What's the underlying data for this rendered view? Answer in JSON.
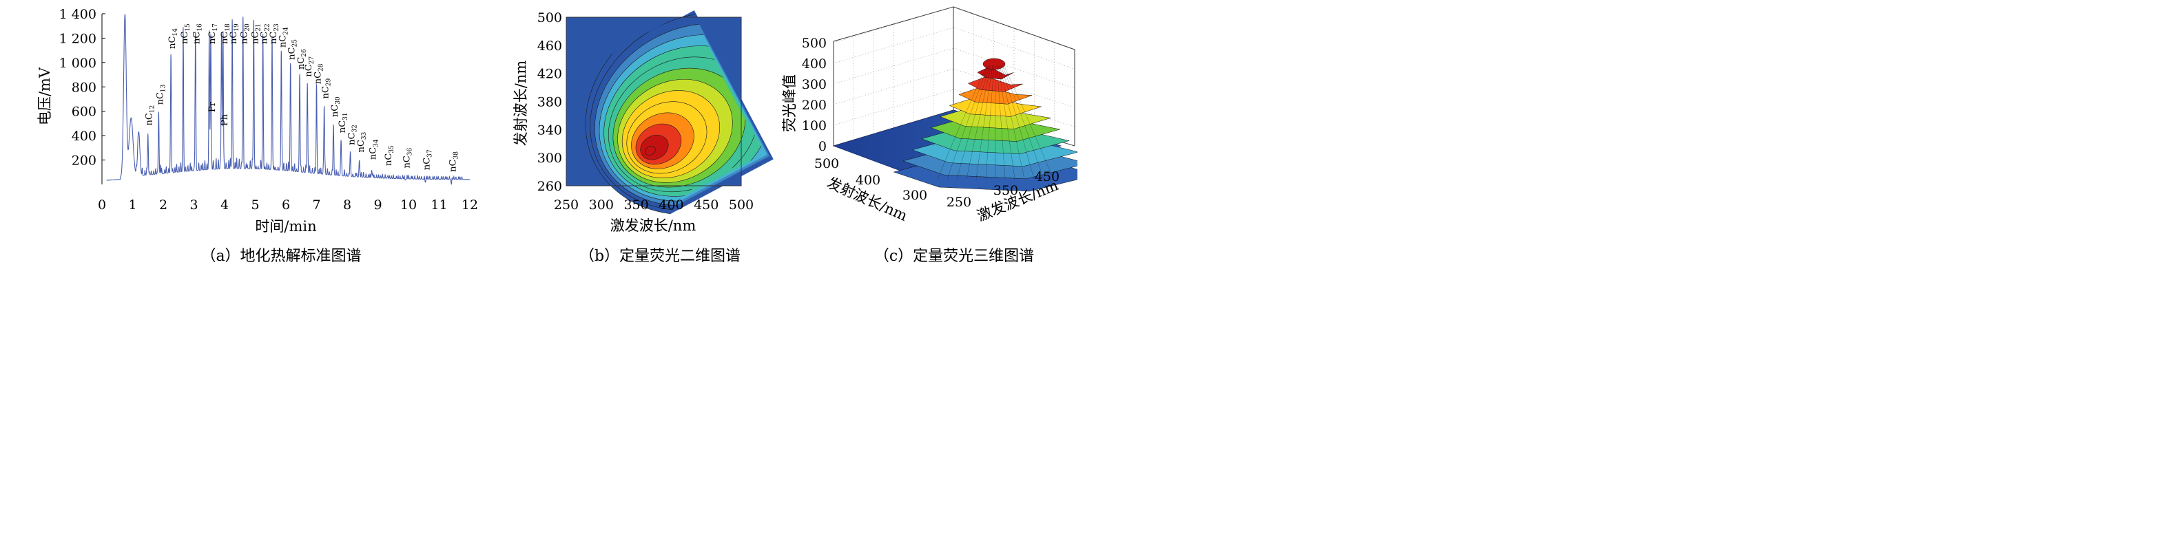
{
  "chart_data": [
    {
      "type": "line",
      "caption": "（a）地化热解标准图谱",
      "xlabel": "时间/min",
      "ylabel": "电压/mV",
      "xlim": [
        0,
        12
      ],
      "ylim": [
        0,
        1400
      ],
      "x_ticks": [
        "0",
        "1",
        "2",
        "3",
        "4",
        "5",
        "6",
        "7",
        "8",
        "9",
        "10",
        "11",
        "12"
      ],
      "y_ticks": [
        "200",
        "400",
        "600",
        "800",
        "1 000",
        "1 200",
        "1 400"
      ],
      "baseline": 40,
      "solvent_peak": {
        "time": 0.75,
        "value": 1330
      },
      "peaks": [
        {
          "label": "nC12",
          "time": 1.5,
          "value": 460
        },
        {
          "label": "nC13",
          "time": 1.85,
          "value": 630
        },
        {
          "label": "nC14",
          "time": 2.25,
          "value": 1090
        },
        {
          "label": "nC15",
          "time": 2.65,
          "value": 1230
        },
        {
          "label": "nC16",
          "time": 3.05,
          "value": 1240
        },
        {
          "label": "Pr",
          "time": 3.5,
          "value": 1250
        },
        {
          "label": "nC17",
          "time": 3.55,
          "value": 1230
        },
        {
          "label": "Ph",
          "time": 3.9,
          "value": 1240
        },
        {
          "label": "nC18",
          "time": 3.95,
          "value": 1250
        },
        {
          "label": "nC19",
          "time": 4.25,
          "value": 1300
        },
        {
          "label": "nC20",
          "time": 4.6,
          "value": 1310
        },
        {
          "label": "nC21",
          "time": 4.95,
          "value": 1300
        },
        {
          "label": "nC22",
          "time": 5.25,
          "value": 1220
        },
        {
          "label": "nC23",
          "time": 5.55,
          "value": 1200
        },
        {
          "label": "nC24",
          "time": 5.85,
          "value": 1100
        },
        {
          "label": "nC25",
          "time": 6.15,
          "value": 1000
        },
        {
          "label": "nC26",
          "time": 6.45,
          "value": 920
        },
        {
          "label": "nC27",
          "time": 6.7,
          "value": 860
        },
        {
          "label": "nC28",
          "time": 7.0,
          "value": 800
        },
        {
          "label": "nC29",
          "time": 7.25,
          "value": 680
        },
        {
          "label": "nC30",
          "time": 7.55,
          "value": 530
        },
        {
          "label": "nC31",
          "time": 7.8,
          "value": 400
        },
        {
          "label": "nC32",
          "time": 8.1,
          "value": 300
        },
        {
          "label": "nC33",
          "time": 8.4,
          "value": 240
        },
        {
          "label": "nC34",
          "time": 8.8,
          "value": 180
        },
        {
          "label": "nC35",
          "time": 9.3,
          "value": 130
        },
        {
          "label": "nC36",
          "time": 9.9,
          "value": 110
        },
        {
          "label": "nC37",
          "time": 10.55,
          "value": 95
        },
        {
          "label": "nC38",
          "time": 11.4,
          "value": 80
        }
      ],
      "series_color": "#4a5fb0"
    },
    {
      "type": "heatmap",
      "subtype": "contour",
      "caption": "（b）定量荧光二维图谱",
      "xlabel": "激发波长/nm",
      "ylabel": "发射波长/nm",
      "xlim": [
        250,
        500
      ],
      "ylim": [
        260,
        500
      ],
      "x_ticks": [
        "250",
        "300",
        "350",
        "400",
        "450",
        "500"
      ],
      "y_ticks": [
        "260",
        "300",
        "340",
        "380",
        "420",
        "460",
        "500"
      ],
      "peak": {
        "excitation": 370,
        "emission": 310
      },
      "levels": 14,
      "colormap": [
        "#2b56a8",
        "#3f86c4",
        "#46b3d4",
        "#3fc39a",
        "#6fcb3a",
        "#c8df2a",
        "#ffd21e",
        "#ff8a14",
        "#e8361e",
        "#c41212"
      ]
    },
    {
      "type": "surface",
      "caption": "（c）定量荧光三维图谱",
      "xlabel": "激发波长/nm",
      "ylabel": "发射波长/nm",
      "zlabel": "荧光峰值",
      "x_ticks": [
        "250",
        "350",
        "450"
      ],
      "y_ticks": [
        "300",
        "400",
        "500"
      ],
      "z_ticks": [
        "0",
        "100",
        "200",
        "300",
        "400",
        "500"
      ],
      "zlim": [
        0,
        500
      ],
      "peak": {
        "excitation": 370,
        "emission": 310,
        "value": 470
      }
    }
  ]
}
